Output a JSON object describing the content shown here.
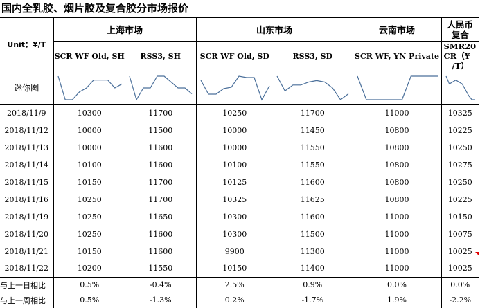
{
  "title": "国内全乳胶、烟片胶及复合胶分市场报价",
  "unit_label": "Unit：¥/T",
  "markets": {
    "shanghai": "上海市场",
    "shandong": "山东市场",
    "yunnan": "云南市场",
    "rmb_line1": "人民币",
    "rmb_line2": "复合"
  },
  "columns": {
    "c1": "SCR WF Old, SH",
    "c2": "RSS3, SH",
    "c3": "SCR WF Old, SD",
    "c4": "RSS3, SD",
    "c5": "SCR WF, YN Private",
    "c6a": "SMR20",
    "c6b": "CR（¥",
    "c6c": "/T）"
  },
  "sparkline_label": "迷你图",
  "rows": [
    {
      "date": "2018/11/9",
      "v": [
        "10300",
        "11700",
        "10250",
        "11700",
        "11000",
        "10325"
      ]
    },
    {
      "date": "2018/11/12",
      "v": [
        "10000",
        "11500",
        "10000",
        "11450",
        "10800",
        "10225"
      ]
    },
    {
      "date": "2018/11/13",
      "v": [
        "10000",
        "11600",
        "10000",
        "11550",
        "10800",
        "10250"
      ]
    },
    {
      "date": "2018/11/14",
      "v": [
        "10100",
        "11600",
        "10100",
        "11550",
        "10800",
        "10275"
      ]
    },
    {
      "date": "2018/11/15",
      "v": [
        "10150",
        "11700",
        "10125",
        "11600",
        "10800",
        "10250"
      ]
    },
    {
      "date": "2018/11/16",
      "v": [
        "10250",
        "11700",
        "10325",
        "11625",
        "10800",
        "10225"
      ]
    },
    {
      "date": "2018/11/19",
      "v": [
        "10250",
        "11650",
        "10300",
        "11600",
        "11000",
        "10150"
      ]
    },
    {
      "date": "2018/11/20",
      "v": [
        "10250",
        "11600",
        "10300",
        "11500",
        "11000",
        "10075"
      ]
    },
    {
      "date": "2018/11/21",
      "v": [
        "10150",
        "11600",
        "9900",
        "11300",
        "11000",
        "10025"
      ]
    },
    {
      "date": "2018/11/22",
      "v": [
        "10200",
        "11550",
        "10150",
        "11400",
        "11000",
        "10025"
      ]
    }
  ],
  "day_change": {
    "label": "与上一日相比",
    "v": [
      "0.5%",
      "-0.4%",
      "2.5%",
      "0.9%",
      "0.0%",
      "0.0%"
    ]
  },
  "week_change": {
    "label": "与上一周相比",
    "v": [
      "0.5%",
      "-1.3%",
      "0.2%",
      "-1.7%",
      "1.9%",
      "-2.2%"
    ]
  },
  "colors": {
    "sparkline": "#4a6f9a",
    "marker": "#e00000"
  }
}
